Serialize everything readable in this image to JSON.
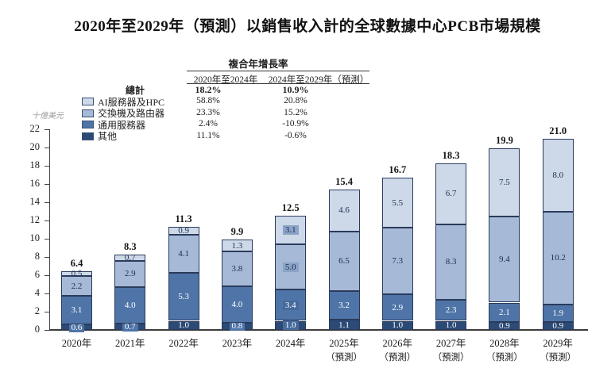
{
  "title": "2020年至2029年（預測）以銷售收入計的全球數據中心PCB市場規模",
  "y_axis_unit": "十億美元",
  "cagr_table": {
    "header": "複合年增長率",
    "columns": [
      "2020年至2024年",
      "2024年至2029年（預測）"
    ],
    "rows": [
      {
        "label": "總計",
        "swatch": null,
        "bold": true,
        "values": [
          "18.2%",
          "10.9%"
        ]
      },
      {
        "label": "AI服務器及HPC",
        "swatch": "#cdd9e8",
        "bold": false,
        "values": [
          "58.8%",
          "20.8%"
        ]
      },
      {
        "label": "交換機及路由器",
        "swatch": "#a6b9d6",
        "bold": false,
        "values": [
          "23.3%",
          "15.2%"
        ]
      },
      {
        "label": "通用服務器",
        "swatch": "#4f74a7",
        "bold": false,
        "values": [
          "2.4%",
          "-10.9%"
        ]
      },
      {
        "label": "其他",
        "swatch": "#2c4a76",
        "bold": false,
        "values": [
          "11.1%",
          "-0.6%"
        ]
      }
    ]
  },
  "chart_data": {
    "type": "bar",
    "stacked": true,
    "title": "2020年至2029年（預測）以銷售收入計的全球數據中心PCB市場規模",
    "ylabel": "十億美元",
    "ylim": [
      0,
      22
    ],
    "ytick_step": 2,
    "grid": false,
    "legend_position": "top-left",
    "categories": [
      "2020年",
      "2021年",
      "2022年",
      "2023年",
      "2024年",
      "2025年",
      "2026年",
      "2027年",
      "2028年",
      "2029年"
    ],
    "category_sublabels": [
      "",
      "",
      "",
      "",
      "",
      "（預測）",
      "（預測）",
      "（預測）",
      "（預測）",
      "（預測）"
    ],
    "series": [
      {
        "name": "其他",
        "color": "#2c4a76",
        "values": [
          0.6,
          0.7,
          1.0,
          0.8,
          1.0,
          1.1,
          1.0,
          1.0,
          0.9,
          0.9
        ]
      },
      {
        "name": "通用服務器",
        "color": "#4f74a7",
        "values": [
          3.1,
          4.0,
          5.3,
          4.0,
          3.4,
          3.2,
          2.9,
          2.3,
          2.1,
          1.9
        ]
      },
      {
        "name": "交換機及路由器",
        "color": "#a6b9d6",
        "values": [
          2.2,
          2.9,
          4.1,
          3.8,
          5.0,
          6.5,
          7.3,
          8.3,
          9.4,
          10.2
        ]
      },
      {
        "name": "AI服務器及HPC",
        "color": "#cdd9e8",
        "values": [
          0.5,
          0.7,
          0.9,
          1.3,
          3.1,
          4.6,
          5.5,
          6.7,
          7.5,
          8.0
        ]
      }
    ],
    "totals": [
      6.4,
      8.3,
      11.3,
      9.9,
      12.5,
      15.4,
      16.7,
      18.3,
      19.9,
      21.0
    ],
    "highlighted_category_index": 4,
    "highlight_colors": {
      "on_light": "#8aa3c7",
      "on_dark": "#46699b"
    },
    "small_bottom_label_box_color": "#4f74a7"
  }
}
